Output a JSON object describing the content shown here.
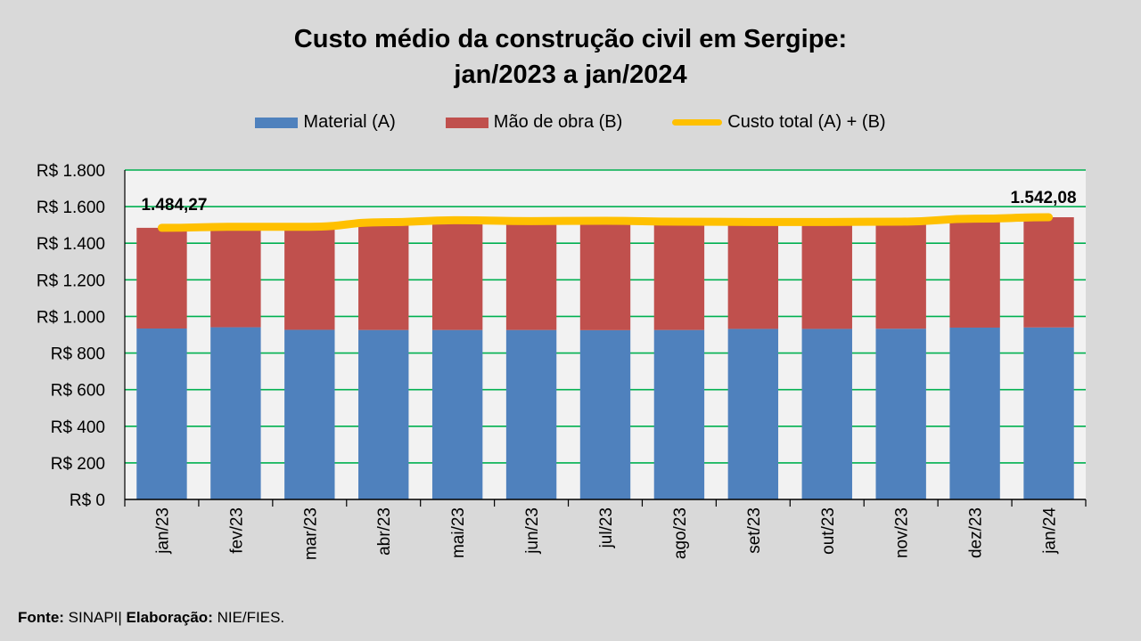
{
  "chart_data": {
    "type": "bar",
    "stacked": true,
    "title_line1": "Custo médio da construção civil em Sergipe:",
    "title_line2": "jan/2023 a jan/2024",
    "categories": [
      "jan/23",
      "fev/23",
      "mar/23",
      "abr/23",
      "mai/23",
      "jun/23",
      "jul/23",
      "ago/23",
      "set/23",
      "out/23",
      "nov/23",
      "dez/23",
      "jan/24"
    ],
    "series": [
      {
        "name": "Material (A)",
        "type": "bar",
        "color": "#4f81bd",
        "values": [
          934,
          941,
          927,
          926,
          926,
          926,
          925,
          926,
          932,
          932,
          933,
          939,
          940
        ]
      },
      {
        "name": "Mão de obra (B)",
        "type": "bar",
        "color": "#c0504d",
        "values": [
          550.27,
          549,
          563,
          589,
          600,
          595,
          598,
          592,
          584,
          584,
          585,
          595,
          602.08
        ]
      },
      {
        "name": "Custo total (A) + (B)",
        "type": "line",
        "color": "#ffc000",
        "values": [
          1484.27,
          1490,
          1490,
          1515,
          1526,
          1521,
          1523,
          1518,
          1516,
          1516,
          1518,
          1534,
          1542.08
        ]
      }
    ],
    "data_labels": {
      "first": "1.484,27",
      "last": "1.542,08"
    },
    "ylim": [
      0,
      1800
    ],
    "yticks": [
      0,
      200,
      400,
      600,
      800,
      1000,
      1200,
      1400,
      1600,
      1800
    ],
    "ytick_labels": [
      "R$ 0",
      "R$ 200",
      "R$ 400",
      "R$ 600",
      "R$ 800",
      "R$ 1.000",
      "R$ 1.200",
      "R$ 1.400",
      "R$ 1.600",
      "R$ 1.800"
    ],
    "grid": true,
    "grid_color": "#00b050",
    "legend_position": "top"
  },
  "footer": {
    "source_label": "Fonte:",
    "source_value": " SINAPI| ",
    "credit_label": "Elaboração:",
    "credit_value": " NIE/FIES."
  }
}
